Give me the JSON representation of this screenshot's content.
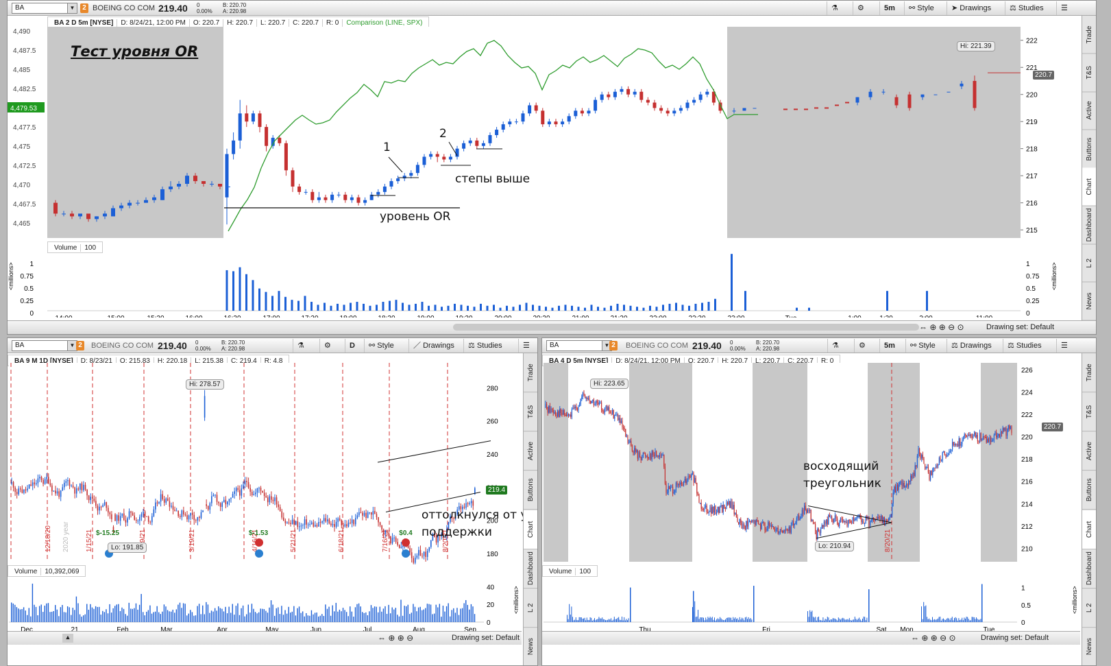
{
  "colors": {
    "up": "#1b5fd6",
    "down": "#c53030",
    "compare": "#2e9c2e",
    "grey": "#c8c8c8",
    "accent": "#e8882a"
  },
  "top": {
    "symbol": "BA",
    "link_num": "2",
    "company": "BOEING CO COM",
    "last": "219.40",
    "change": "0",
    "change_pct": "0.00%",
    "bid": "B: 220.70",
    "ask": "A: 220.98",
    "timeframe": "5m",
    "style_label": "Style",
    "drawings_label": "Drawings",
    "studies_label": "Studies",
    "header": {
      "title": "BA 2 D 5m [NYSE]",
      "date": "D: 8/24/21, 12:00 PM",
      "open": "O: 220.7",
      "high": "H: 220.7",
      "low": "L: 220.7",
      "close": "C: 220.7",
      "range": "R: 0",
      "comparison": "Comparison (LINE, SPX)"
    },
    "title_note": "Тест уровня OR",
    "annotations": {
      "level": "уровень OR",
      "steps": "степы выше",
      "n1": "1",
      "n2": "2"
    },
    "left_axis": [
      "4,490",
      "4,487.5",
      "4,485",
      "4,482.5",
      "4,479.53",
      "4,477.5",
      "4,475",
      "4,472.5",
      "4,470",
      "4,467.5",
      "4,465"
    ],
    "right_axis": [
      "222",
      "221",
      "220",
      "219",
      "218",
      "217",
      "216",
      "215"
    ],
    "hi_label": "Hi: 221.39",
    "price_tag": "220.7",
    "volume_header": "Volume",
    "volume_value": "100",
    "vol_axis": [
      "1",
      "0.75",
      "0.5",
      "0.25",
      "0"
    ],
    "vol_unit": "<millions>",
    "time_axis": [
      "14:00",
      "15:00",
      "15:30",
      "16:00",
      "16:30",
      "17:00",
      "17:30",
      "18:00",
      "18:30",
      "19:00",
      "19:30",
      "20:00",
      "20:30",
      "21:00",
      "21:30",
      "22:00",
      "22:30",
      "23:00",
      "Tue",
      "1:00",
      "1:30",
      "2:00",
      "11:00"
    ],
    "drawing_set": "Drawing set: Default",
    "sidetabs": [
      "Trade",
      "T&S",
      "Active Trader",
      "Buttons",
      "Chart",
      "Dashboard",
      "L 2",
      "News"
    ]
  },
  "left": {
    "symbol": "BA",
    "link_num": "2",
    "company": "BOEING CO COM",
    "last": "219.40",
    "change": "0",
    "change_pct": "0.00%",
    "bid": "B: 220.70",
    "ask": "A: 220.98",
    "timeframe": "D",
    "style_label": "Style",
    "drawings_label": "Drawings",
    "studies_label": "Studies",
    "header": {
      "title": "BA 9 M 1D [NYSE]",
      "date": "D: 8/23/21",
      "open": "O: 215.83",
      "high": "H: 220.18",
      "low": "L: 215.38",
      "close": "C: 219.4",
      "range": "R: 4.8"
    },
    "right_axis": [
      "280",
      "260",
      "240",
      "220",
      "200",
      "180"
    ],
    "hi_label": "Hi: 278.57",
    "lo_label": "Lo: 191.85",
    "price_tag": "219.4",
    "dates": [
      "12/18/20",
      "2020 year",
      "1/15/21",
      "2/19/21",
      "3/19/21",
      "4/16/21",
      "5/21/21",
      "6/18/21",
      "7/16/21",
      "8/20/21"
    ],
    "events": [
      "$-15.25",
      "$-1.53",
      "$0.4"
    ],
    "note": "оттолкнулся от уровня поддержки",
    "note_line1": "оттолкнулся от уровня",
    "note_line2": "поддержки",
    "volume_header": "Volume",
    "volume_value": "10,392,069",
    "vol_axis": [
      "40",
      "20",
      "0"
    ],
    "vol_unit": "<millions>",
    "time_axis": [
      "Dec",
      "21",
      "Feb",
      "Mar",
      "Apr",
      "May",
      "Jun",
      "Jul",
      "Aug",
      "Sep"
    ],
    "drawing_set": "Drawing set: Default",
    "sidetabs": [
      "Trade",
      "T&S",
      "Active Trader",
      "Buttons",
      "Chart",
      "Dashboard",
      "L 2",
      "News"
    ]
  },
  "right": {
    "symbol": "BA",
    "link_num": "2",
    "company": "BOEING CO COM",
    "last": "219.40",
    "change": "0",
    "change_pct": "0.00%",
    "bid": "B: 220.70",
    "ask": "A: 220.98",
    "timeframe": "5m",
    "style_label": "Style",
    "drawings_label": "Drawings",
    "studies_label": "Studies",
    "header": {
      "title": "BA 4 D 5m [NYSE]",
      "date": "D: 8/24/21, 12:00 PM",
      "open": "O: 220.7",
      "high": "H: 220.7",
      "low": "L: 220.7",
      "close": "C: 220.7",
      "range": "R: 0"
    },
    "right_axis": [
      "226",
      "224",
      "222",
      "220",
      "218",
      "216",
      "214",
      "212",
      "210"
    ],
    "hi_label": "Hi: 223.65",
    "lo_label": "Lo: 210.94",
    "price_tag": "220.7",
    "date_tag": "8/20/21",
    "note_line1": "восходящий",
    "note_line2": "треугольник",
    "volume_header": "Volume",
    "volume_value": "100",
    "vol_axis": [
      "1",
      "0.5",
      "0"
    ],
    "vol_unit": "<millions>",
    "time_axis": [
      "Thu",
      "Fri",
      "Sat",
      "Mon",
      "Tue"
    ],
    "drawing_set": "Drawing set: Default",
    "sidetabs": [
      "Trade",
      "T&S",
      "Active Trader",
      "Buttons",
      "Chart",
      "Dashboard",
      "L 2",
      "News"
    ]
  }
}
